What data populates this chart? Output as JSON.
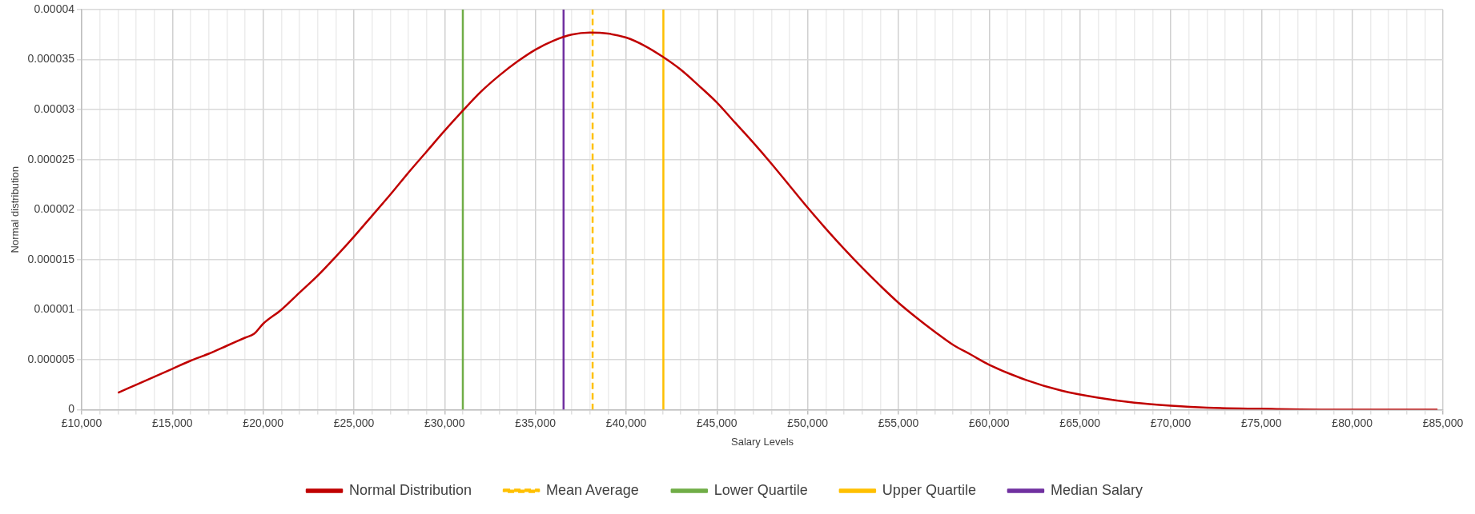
{
  "chart_data": {
    "type": "line",
    "xlabel": "Salary Levels",
    "ylabel": "Normal distribution",
    "marker": "none",
    "grid": true,
    "legend": "bottom",
    "xlim": [
      10000,
      85000
    ],
    "ylim": [
      0,
      4e-05
    ],
    "xticks": [
      {
        "value": 10000,
        "label": "£10,000"
      },
      {
        "value": 11000,
        "label": null
      },
      {
        "value": 12000,
        "label": null
      },
      {
        "value": 13000,
        "label": null
      },
      {
        "value": 14000,
        "label": null
      },
      {
        "value": 15000,
        "label": "£15,000"
      },
      {
        "value": 16000,
        "label": null
      },
      {
        "value": 17000,
        "label": null
      },
      {
        "value": 18000,
        "label": null
      },
      {
        "value": 19000,
        "label": null
      },
      {
        "value": 20000,
        "label": "£20,000"
      },
      {
        "value": 21000,
        "label": null
      },
      {
        "value": 22000,
        "label": null
      },
      {
        "value": 23000,
        "label": null
      },
      {
        "value": 24000,
        "label": null
      },
      {
        "value": 25000,
        "label": "£25,000"
      },
      {
        "value": 26000,
        "label": null
      },
      {
        "value": 27000,
        "label": null
      },
      {
        "value": 28000,
        "label": null
      },
      {
        "value": 29000,
        "label": null
      },
      {
        "value": 30000,
        "label": "£30,000"
      },
      {
        "value": 31000,
        "label": null
      },
      {
        "value": 32000,
        "label": null
      },
      {
        "value": 33000,
        "label": null
      },
      {
        "value": 34000,
        "label": null
      },
      {
        "value": 35000,
        "label": "£35,000"
      },
      {
        "value": 36000,
        "label": null
      },
      {
        "value": 37000,
        "label": null
      },
      {
        "value": 38000,
        "label": null
      },
      {
        "value": 39000,
        "label": null
      },
      {
        "value": 40000,
        "label": "£40,000"
      },
      {
        "value": 41000,
        "label": null
      },
      {
        "value": 42000,
        "label": null
      },
      {
        "value": 43000,
        "label": null
      },
      {
        "value": 44000,
        "label": null
      },
      {
        "value": 45000,
        "label": "£45,000"
      },
      {
        "value": 46000,
        "label": null
      },
      {
        "value": 47000,
        "label": null
      },
      {
        "value": 48000,
        "label": null
      },
      {
        "value": 49000,
        "label": null
      },
      {
        "value": 50000,
        "label": "£50,000"
      },
      {
        "value": 51000,
        "label": null
      },
      {
        "value": 52000,
        "label": null
      },
      {
        "value": 53000,
        "label": null
      },
      {
        "value": 54000,
        "label": null
      },
      {
        "value": 55000,
        "label": "£55,000"
      },
      {
        "value": 56000,
        "label": null
      },
      {
        "value": 57000,
        "label": null
      },
      {
        "value": 58000,
        "label": null
      },
      {
        "value": 59000,
        "label": null
      },
      {
        "value": 60000,
        "label": "£60,000"
      },
      {
        "value": 61000,
        "label": null
      },
      {
        "value": 62000,
        "label": null
      },
      {
        "value": 63000,
        "label": null
      },
      {
        "value": 64000,
        "label": null
      },
      {
        "value": 65000,
        "label": "£65,000"
      },
      {
        "value": 66000,
        "label": null
      },
      {
        "value": 67000,
        "label": null
      },
      {
        "value": 68000,
        "label": null
      },
      {
        "value": 69000,
        "label": null
      },
      {
        "value": 70000,
        "label": "£70,000"
      },
      {
        "value": 71000,
        "label": null
      },
      {
        "value": 72000,
        "label": null
      },
      {
        "value": 73000,
        "label": null
      },
      {
        "value": 74000,
        "label": null
      },
      {
        "value": 75000,
        "label": "£75,000"
      },
      {
        "value": 76000,
        "label": null
      },
      {
        "value": 77000,
        "label": null
      },
      {
        "value": 78000,
        "label": null
      },
      {
        "value": 79000,
        "label": null
      },
      {
        "value": 80000,
        "label": "£80,000"
      },
      {
        "value": 81000,
        "label": null
      },
      {
        "value": 82000,
        "label": null
      },
      {
        "value": 83000,
        "label": null
      },
      {
        "value": 84000,
        "label": null
      },
      {
        "value": 85000,
        "label": "£85,000"
      }
    ],
    "yticks": [
      {
        "value": 0,
        "label": "0"
      },
      {
        "value": 5e-06,
        "label": "0.000005"
      },
      {
        "value": 1e-05,
        "label": "0.00001"
      },
      {
        "value": 1.5e-05,
        "label": "0.000015"
      },
      {
        "value": 2e-05,
        "label": "0.00002"
      },
      {
        "value": 2.5e-05,
        "label": "0.000025"
      },
      {
        "value": 3e-05,
        "label": "0.00003"
      },
      {
        "value": 3.5e-05,
        "label": "0.000035"
      },
      {
        "value": 4e-05,
        "label": "0.00004"
      }
    ],
    "series": [
      {
        "name": "Normal Distribution",
        "color": "#c00000",
        "line_style": "solid",
        "x": [
          12000,
          13000,
          14000,
          15000,
          16000,
          17000,
          18000,
          19000,
          19500,
          20000,
          21000,
          22000,
          23000,
          24000,
          25000,
          26000,
          27000,
          28000,
          29000,
          30000,
          31000,
          32000,
          33000,
          34000,
          35000,
          36000,
          37000,
          38000,
          39000,
          40000,
          41000,
          42000,
          43000,
          44000,
          45000,
          46000,
          47000,
          48000,
          49000,
          50000,
          51000,
          52000,
          53000,
          54000,
          55000,
          56000,
          57000,
          58000,
          59000,
          60000,
          62000,
          64000,
          66000,
          68000,
          70000,
          72000,
          75000,
          80000,
          84700
        ],
        "values": [
          1.7e-06,
          2.5e-06,
          3.3e-06,
          4.1e-06,
          4.9e-06,
          5.6e-06,
          6.4e-06,
          7.2e-06,
          7.6e-06,
          8.6e-06,
          1e-05,
          1.17e-05,
          1.34e-05,
          1.53e-05,
          1.73e-05,
          1.94e-05,
          2.15e-05,
          2.37e-05,
          2.58e-05,
          2.79e-05,
          2.99e-05,
          3.18e-05,
          3.34e-05,
          3.48e-05,
          3.6e-05,
          3.69e-05,
          3.75e-05,
          3.77e-05,
          3.76e-05,
          3.72e-05,
          3.64e-05,
          3.53e-05,
          3.4e-05,
          3.24e-05,
          3.07e-05,
          2.87e-05,
          2.67e-05,
          2.46e-05,
          2.24e-05,
          2.02e-05,
          1.81e-05,
          1.61e-05,
          1.42e-05,
          1.24e-05,
          1.07e-05,
          9.2e-06,
          7.8e-06,
          6.5e-06,
          5.5e-06,
          4.5e-06,
          3e-06,
          1.9e-06,
          1.2e-06,
          7e-07,
          4e-07,
          2e-07,
          1e-07,
          0,
          0
        ]
      },
      {
        "name": "Mean Average",
        "color": "#ffc000",
        "line_style": "dashed",
        "x": [
          38150,
          38150
        ],
        "values": [
          0,
          4e-05
        ]
      },
      {
        "name": "Lower Quartile",
        "color": "#70ad47",
        "line_style": "solid",
        "x": [
          31000,
          31000
        ],
        "values": [
          0,
          4e-05
        ]
      },
      {
        "name": "Upper Quartile",
        "color": "#ffc000",
        "line_style": "solid",
        "x": [
          42050,
          42050
        ],
        "values": [
          0,
          4e-05
        ]
      },
      {
        "name": "Median Salary",
        "color": "#7030a0",
        "line_style": "solid",
        "x": [
          36550,
          36550
        ],
        "values": [
          0,
          4e-05
        ]
      }
    ]
  }
}
